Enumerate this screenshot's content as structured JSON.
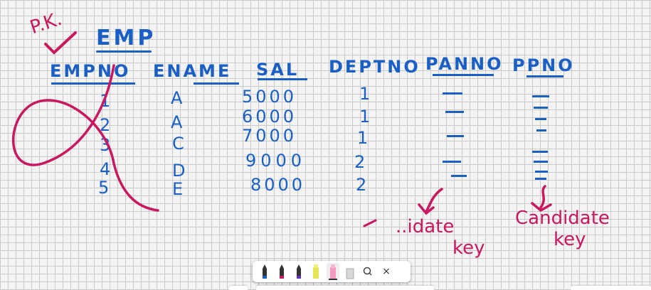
{
  "annotations": {
    "pk_label": "P.K.",
    "table_name": "EMP",
    "candidate_key_left_line1": "..idate",
    "candidate_key_left_line2": "key",
    "candidate_key_right_line1": "Candidate",
    "candidate_key_right_line2": "key"
  },
  "columns": [
    "EMPNO",
    "ENAME",
    "SAL",
    "DEPTNO",
    "PANNO",
    "PPNO"
  ],
  "rows": [
    {
      "empno": "1",
      "ename": "A",
      "sal": "5000",
      "deptno": "1"
    },
    {
      "empno": "2",
      "ename": "A",
      "sal": "6000",
      "deptno": "1"
    },
    {
      "empno": "3",
      "ename": "C",
      "sal": "7000",
      "deptno": "1"
    },
    {
      "empno": "4",
      "ename": "D",
      "sal": "9000",
      "deptno": "2"
    },
    {
      "empno": "5",
      "ename": "E",
      "sal": "8000",
      "deptno": "2"
    }
  ],
  "toolbar": {
    "tools": [
      "black-pen-icon",
      "magenta-pen-icon",
      "purple-pen-icon",
      "yellow-highlighter-icon",
      "pink-highlighter-icon",
      "eraser-icon",
      "lasso-icon",
      "close-icon"
    ],
    "close_glyph": "×",
    "colors": {
      "blue_ink": "#1a5fc4",
      "pink_ink": "#c8185f"
    }
  }
}
